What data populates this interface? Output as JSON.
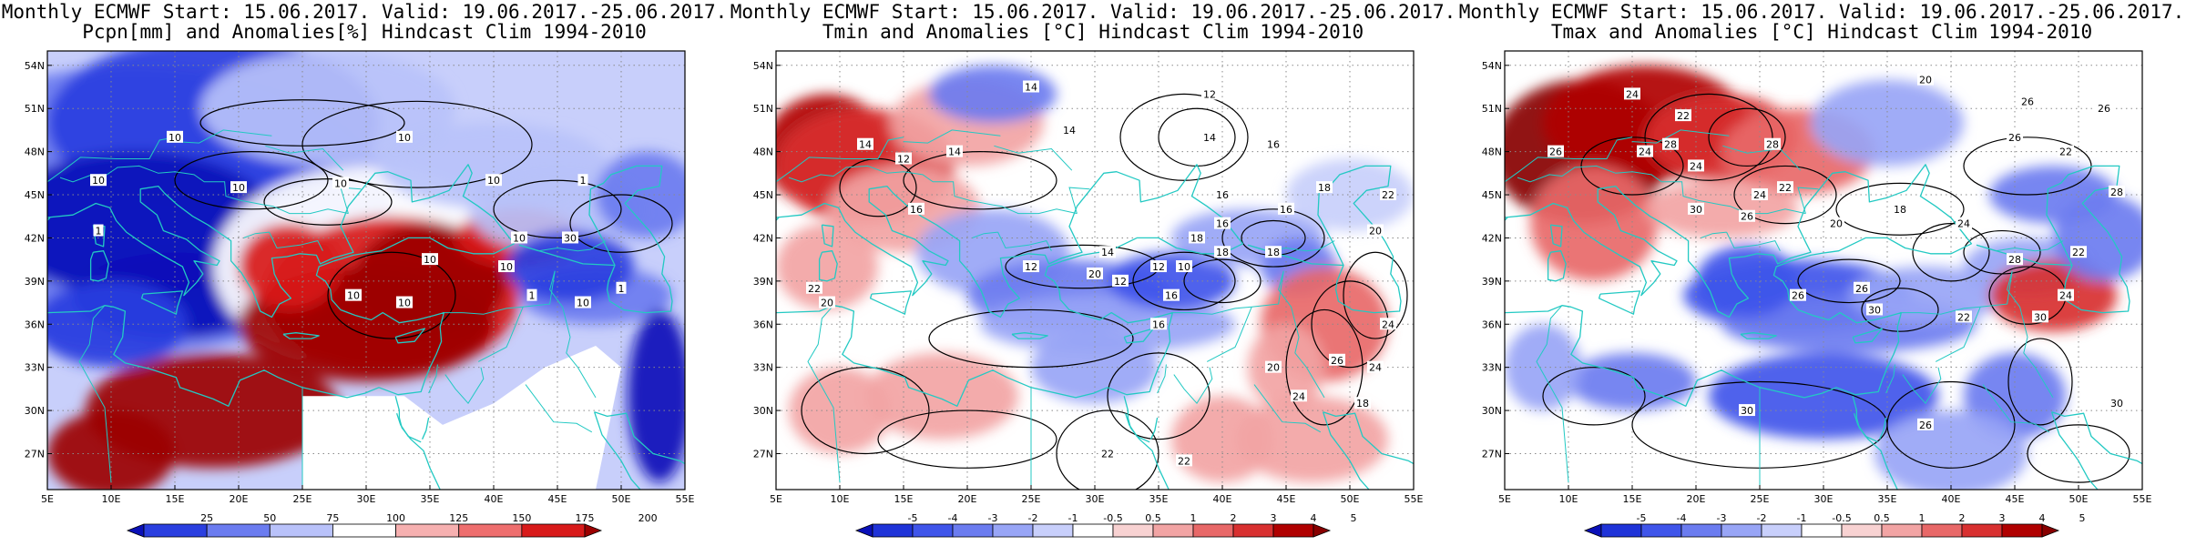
{
  "panels": [
    {
      "title1": "Monthly ECMWF Start: 15.06.2017. Valid: 19.06.2017.-25.06.2017.",
      "title2": "Pcpn[mm] and Anomalies[%] Hindcast Clim 1994-2010",
      "variable": "precipitation",
      "colorbar": {
        "labels": [
          "25",
          "50",
          "75",
          "100",
          "125",
          "150",
          "175",
          "200"
        ],
        "colors": [
          "#0a10b8",
          "#2a3fe0",
          "#6b7cf0",
          "#b9c2fa",
          "#ffffff",
          "#f6b0b0",
          "#ee6e6e",
          "#d81a1a",
          "#9c0000"
        ]
      },
      "contour_labels": [
        "10",
        "10",
        "10",
        "10",
        "10",
        "1",
        "1",
        "10",
        "10",
        "10",
        "10",
        "10",
        "1",
        "10",
        "30",
        "10",
        "1"
      ]
    },
    {
      "title1": "Monthly ECMWF Start: 15.06.2017. Valid: 19.06.2017.-25.06.2017.",
      "title2": "Tmin and Anomalies [°C] Hindcast Clim 1994-2010",
      "variable": "tmin",
      "colorbar": {
        "labels": [
          "-5",
          "-4",
          "-3",
          "-2",
          "-1",
          "-0.5",
          "0.5",
          "1",
          "2",
          "3",
          "4",
          "5"
        ],
        "colors": [
          "#0a10b8",
          "#1f33d8",
          "#3f55ea",
          "#6b7cf0",
          "#98a5f6",
          "#c8cffb",
          "#ffffff",
          "#f8d2d2",
          "#f2a4a4",
          "#e86868",
          "#d83030",
          "#b00000",
          "#880000"
        ]
      },
      "contour_labels": [
        "14",
        "12",
        "14",
        "14",
        "12",
        "14",
        "14",
        "16",
        "16",
        "18",
        "16",
        "16",
        "22",
        "20",
        "20",
        "16",
        "18",
        "12",
        "10",
        "18",
        "24",
        "22",
        "20",
        "24",
        "26",
        "18",
        "24",
        "22",
        "22",
        "12",
        "18",
        "16",
        "14",
        "12",
        "16",
        "20"
      ]
    },
    {
      "title1": "Monthly ECMWF Start: 15.06.2017. Valid: 19.06.2017.-25.06.2017.",
      "title2": "Tmax and Anomalies [°C] Hindcast Clim 1994-2010",
      "variable": "tmax",
      "colorbar": {
        "labels": [
          "-5",
          "-4",
          "-3",
          "-2",
          "-1",
          "-0.5",
          "0.5",
          "1",
          "2",
          "3",
          "4",
          "5"
        ],
        "colors": [
          "#0a10b8",
          "#1f33d8",
          "#3f55ea",
          "#6b7cf0",
          "#98a5f6",
          "#c8cffb",
          "#ffffff",
          "#f8d2d2",
          "#f2a4a4",
          "#e86868",
          "#d83030",
          "#b00000",
          "#880000"
        ]
      },
      "contour_labels": [
        "20",
        "24",
        "22",
        "26",
        "26",
        "24",
        "28",
        "28",
        "24",
        "22",
        "26",
        "26",
        "26",
        "22",
        "24",
        "28",
        "30",
        "20",
        "26",
        "26",
        "30",
        "24",
        "30",
        "22",
        "30",
        "30",
        "26",
        "28",
        "18",
        "24",
        "22"
      ]
    }
  ],
  "lat_labels": [
    "54N",
    "51N",
    "48N",
    "45N",
    "42N",
    "39N",
    "36N",
    "33N",
    "30N",
    "27N"
  ],
  "lon_labels": [
    "5E",
    "10E",
    "15E",
    "20E",
    "25E",
    "30E",
    "35E",
    "40E",
    "45E",
    "50E",
    "55E"
  ],
  "colors": {
    "coastline": "#23c9c3",
    "contour": "#000000",
    "gridline": "#8a8a8a"
  }
}
